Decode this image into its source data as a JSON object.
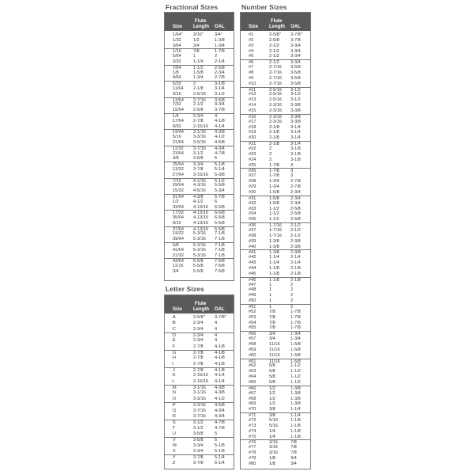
{
  "headers": {
    "size": "Size",
    "flute_line1": "Flute",
    "flute_line2": "Length",
    "oal": "OAL"
  },
  "fractional": {
    "title": "Fractional Sizes",
    "rows": [
      [
        "1/64\"",
        "3/16\"",
        "3/4\""
      ],
      [
        "1/32",
        "1/2",
        "1-3/8"
      ],
      [
        "3/64",
        "3/4",
        "1-3/4"
      ],
      [
        "1/16",
        "7/8",
        "1-7/8"
      ],
      [
        "5/64",
        "1",
        "2"
      ],
      [
        "3/32",
        "1-1/4",
        "2-1/4"
      ],
      [
        "7/64",
        "1-1/2",
        "2-5/8"
      ],
      [
        "1/8",
        "1-5/8",
        "2-3/4"
      ],
      [
        "9/64",
        "1-3/4",
        "2-7/8"
      ],
      [
        "5/32",
        "2",
        "3-1/8"
      ],
      [
        "11/64",
        "2-1/8",
        "3-1/4"
      ],
      [
        "3/16",
        "2-5/16",
        "3-1/2"
      ],
      [
        "13/64",
        "2-7/16",
        "3-5/8"
      ],
      [
        "7/32",
        "2-1/2",
        "3-3/4"
      ],
      [
        "15/64",
        "2-5/8",
        "3-7/8"
      ],
      [
        "1/4",
        "2-3/4",
        "4"
      ],
      [
        "17/64",
        "2-7/8",
        "4-1/8"
      ],
      [
        "9/32",
        "2-15/16",
        "4-1/4"
      ],
      [
        "19/64",
        "3-1/16",
        "4-3/8"
      ],
      [
        "5/16",
        "3-3/16",
        "4-1/2"
      ],
      [
        "21/64",
        "3-5/16",
        "4-5/8"
      ],
      [
        "11/32",
        "3-7/16",
        "4-3/4"
      ],
      [
        "23/64",
        "3-1/2",
        "4-7/8"
      ],
      [
        "3/8",
        "3-5/8",
        "5"
      ],
      [
        "25/64",
        "3-3/4",
        "5-1/8"
      ],
      [
        "13/32",
        "3-7/8",
        "5-1/4"
      ],
      [
        "27/64",
        "3-15/16",
        "5-3/8"
      ],
      [
        "7/16",
        "4-1/16",
        "5-1/2"
      ],
      [
        "29/64",
        "4-3/16",
        "5-5/8"
      ],
      [
        "15/32",
        "4-5/16",
        "5-3/4"
      ],
      [
        "31/64",
        "4-3/8",
        "5-7/8"
      ],
      [
        "1/2",
        "4-1/2",
        "6"
      ],
      [
        "33/64",
        "4-13/16",
        "6-5/8"
      ],
      [
        "17/32",
        "4-13/16",
        "6-5/8"
      ],
      [
        "35/64",
        "4-13/16",
        "6-5/8"
      ],
      [
        "9/16",
        "4-13/16",
        "6-5/8"
      ],
      [
        "37/64",
        "4-13/16",
        "6-5/8"
      ],
      [
        "19/32",
        "5-3/16",
        "7-1/8"
      ],
      [
        "39/64",
        "5-3/16",
        "7-1/8"
      ],
      [
        "5/8",
        "5-3/16",
        "7-1/8"
      ],
      [
        "41/64",
        "5-3/16",
        "7-1/8"
      ],
      [
        "21/32",
        "5-3/16",
        "7-1/8"
      ],
      [
        "43/64",
        "5-5/8",
        "7-5/8"
      ],
      [
        "11/16",
        "5-5/8",
        "7-5/8"
      ],
      [
        "3/4",
        "5-5/8",
        "7-5/8"
      ]
    ]
  },
  "letter": {
    "title": "Letter Sizes",
    "rows": [
      [
        "A",
        "2-5/8\"",
        "3-7/8\""
      ],
      [
        "B",
        "2-3/4",
        "4"
      ],
      [
        "C",
        "2-3/4",
        "4"
      ],
      [
        "D",
        "2-3/4",
        "4"
      ],
      [
        "E",
        "2-3/4",
        "4"
      ],
      [
        "F",
        "2-7/8",
        "4-1/8"
      ],
      [
        "G",
        "2-7/8",
        "4-1/8"
      ],
      [
        "H",
        "2-7/8",
        "4-1/8"
      ],
      [
        "I",
        "2-7/8",
        "4-1/8"
      ],
      [
        "J",
        "2-7/8",
        "4-1/8"
      ],
      [
        "K",
        "2-15/16",
        "4-1/4"
      ],
      [
        "L",
        "2-15/16",
        "4-1/4"
      ],
      [
        "M",
        "3-1/16",
        "4-3/8"
      ],
      [
        "N",
        "3-1/16",
        "4-3/8"
      ],
      [
        "O",
        "3-3/16",
        "4-1/2"
      ],
      [
        "P",
        "3-3/16",
        "4-5/8"
      ],
      [
        "Q",
        "3-7/16",
        "4-3/4"
      ],
      [
        "R",
        "3-7/16",
        "4-3/4"
      ],
      [
        "S",
        "3-1/2",
        "4-7/8"
      ],
      [
        "T",
        "3-1/2",
        "4-7/8"
      ],
      [
        "U",
        "3-5/8",
        "5"
      ],
      [
        "V",
        "3-5/8",
        "5"
      ],
      [
        "W",
        "3-3/4",
        "5-1/8"
      ],
      [
        "X",
        "3-3/4",
        "5-1/8"
      ],
      [
        "Y",
        "3-7/8",
        "5-1/4"
      ],
      [
        "Z",
        "3-7/8",
        "5-1/4"
      ]
    ]
  },
  "number": {
    "title": "Number Sizes",
    "rows": [
      [
        "#1",
        "2-5/8\"",
        "3-7/8\""
      ],
      [
        "#2",
        "2-5/8",
        "3-7/8"
      ],
      [
        "#3",
        "2-1/2",
        "3-3/4"
      ],
      [
        "#4",
        "2-1/2",
        "3-3/4"
      ],
      [
        "#5",
        "2-1/2",
        "3-3/4"
      ],
      [
        "#6",
        "2-1/2",
        "3-3/4"
      ],
      [
        "#7",
        "2-7/16",
        "3-5/8"
      ],
      [
        "#8",
        "2-7/16",
        "3-5/8"
      ],
      [
        "#9",
        "2-7/16",
        "3-5/8"
      ],
      [
        "#10",
        "2-7/16",
        "3-5/8"
      ],
      [
        "#11",
        "2-5/16",
        "3-1/2"
      ],
      [
        "#12",
        "2-5/16",
        "3-1/2"
      ],
      [
        "#13",
        "2-5/16",
        "3-1/2"
      ],
      [
        "#14",
        "2-3/16",
        "3-3/8"
      ],
      [
        "#15",
        "2-3/16",
        "3-3/8"
      ],
      [
        "#16",
        "2-3/16",
        "3-3/8"
      ],
      [
        "#17",
        "2-3/16",
        "3-3/8"
      ],
      [
        "#18",
        "2-1/8",
        "3-1/4"
      ],
      [
        "#19",
        "2-1/8",
        "3-1/4"
      ],
      [
        "#20",
        "2-1/8",
        "3-1/4"
      ],
      [
        "#21",
        "2-1/8",
        "3-1/4"
      ],
      [
        "#22",
        "2",
        "3-1/8"
      ],
      [
        "#23",
        "2",
        "3-1/8"
      ],
      [
        "#24",
        "2",
        "3-1/8"
      ],
      [
        "#25",
        "1-7/8",
        "3"
      ],
      [
        "#26",
        "1-7/8",
        "3"
      ],
      [
        "#27",
        "1-7/8",
        "3"
      ],
      [
        "#28",
        "1-3/4",
        "2-7/8"
      ],
      [
        "#29",
        "1-3/4",
        "2-7/8"
      ],
      [
        "#30",
        "1-5/8",
        "2-3/4"
      ],
      [
        "#31",
        "1-5/8",
        "2-3/4"
      ],
      [
        "#32",
        "1-5/8",
        "2-3/4"
      ],
      [
        "#33",
        "1-1/2",
        "2-5/8"
      ],
      [
        "#34",
        "1-1/2",
        "2-5/8"
      ],
      [
        "#35",
        "1-1/2",
        "2-5/8"
      ],
      [
        "#36",
        "1-7/16",
        "2-1/2"
      ],
      [
        "#37",
        "1-7/16",
        "2-1/2"
      ],
      [
        "#38",
        "1-7/16",
        "2-1/2"
      ],
      [
        "#39",
        "1-3/8",
        "2-3/8"
      ],
      [
        "#40",
        "1-3/8",
        "2-3/8"
      ],
      [
        "#41",
        "1-3/8",
        "2-3/8"
      ],
      [
        "#42",
        "1-1/4",
        "2-1/4"
      ],
      [
        "#43",
        "1-1/4",
        "2-1/4"
      ],
      [
        "#44",
        "1-1/8",
        "2-1/8"
      ],
      [
        "#45",
        "1-1/8",
        "2-1/8"
      ],
      [
        "#46",
        "1-1/8",
        "2-1/8"
      ],
      [
        "#47",
        "1",
        "2"
      ],
      [
        "#48",
        "1",
        "2"
      ],
      [
        "#49",
        "1",
        "2"
      ],
      [
        "#50",
        "1",
        "2"
      ],
      [
        "#51",
        "1",
        "2"
      ],
      [
        "#52",
        "7/8",
        "1-7/8"
      ],
      [
        "#53",
        "7/8",
        "1-7/8"
      ],
      [
        "#54",
        "7/8",
        "1-7/8"
      ],
      [
        "#55",
        "7/8",
        "1-7/8"
      ],
      [
        "#56",
        "3/4",
        "1-3/4"
      ],
      [
        "#57",
        "3/4",
        "1-3/4"
      ],
      [
        "#58",
        "11/16",
        "1-5/8"
      ],
      [
        "#59",
        "11/16",
        "1-5/8"
      ],
      [
        "#60",
        "11/16",
        "1-5/8"
      ],
      [
        "#61",
        "11/16",
        "1-5/8"
      ],
      [
        "#62",
        "5/8",
        "1-1/2"
      ],
      [
        "#63",
        "5/8",
        "1-1/2"
      ],
      [
        "#64",
        "5/8",
        "1-1/2"
      ],
      [
        "#65",
        "5/8",
        "1-1/2"
      ],
      [
        "#66",
        "1/2",
        "1-3/8"
      ],
      [
        "#67",
        "1/2",
        "1-3/8"
      ],
      [
        "#68",
        "1/2",
        "1-3/8"
      ],
      [
        "#69",
        "1/2",
        "1-3/8"
      ],
      [
        "#70",
        "3/8",
        "1-1/4"
      ],
      [
        "#71",
        "3/8",
        "1-1/4"
      ],
      [
        "#72",
        "5/16",
        "1-1/8"
      ],
      [
        "#73",
        "5/16",
        "1-1/8"
      ],
      [
        "#74",
        "1/4",
        "1-1/8"
      ],
      [
        "#75",
        "1/4",
        "1-1/8"
      ],
      [
        "#76",
        "3/16",
        "7/8"
      ],
      [
        "#77",
        "3/16",
        "7/8"
      ],
      [
        "#78",
        "3/16",
        "7/8"
      ],
      [
        "#79",
        "1/8",
        "3/4"
      ],
      [
        "#80",
        "1/8",
        "3/4"
      ]
    ]
  }
}
